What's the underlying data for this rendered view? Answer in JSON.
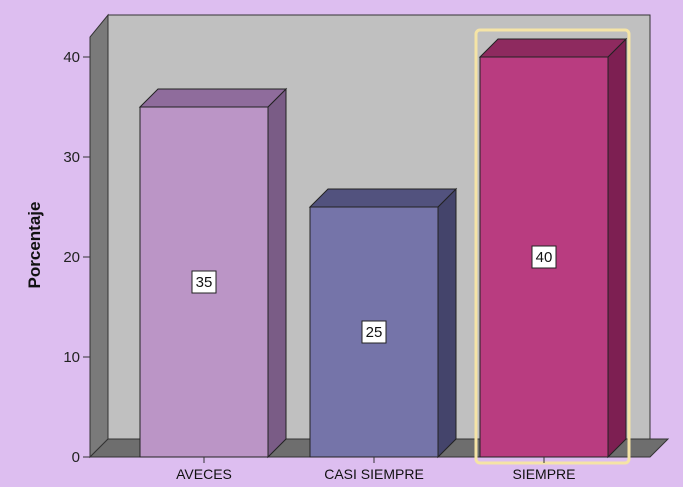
{
  "chart_data": {
    "type": "bar",
    "categories": [
      "AVECES",
      "CASI SIEMPRE",
      "SIEMPRE"
    ],
    "values": [
      35,
      25,
      40
    ],
    "data_labels": [
      "35",
      "25",
      "40"
    ],
    "ylabel": "Porcentaje",
    "xlabel": "",
    "ylim": [
      0,
      42
    ],
    "yticks": [
      "0",
      "10",
      "20",
      "30",
      "40"
    ],
    "grid": false,
    "legend": "none",
    "style": "3d",
    "highlighted_category": "SIEMPRE",
    "colors": {
      "background": "#ddbef0",
      "wall": "#c0c0c0",
      "wall_side": "#7a7a7a",
      "floor": "#6e6e6e",
      "highlight_outline": "#f5e4a6",
      "bars": [
        "#bb95c6",
        "#7574a9",
        "#b93c80"
      ],
      "bar_sides": [
        "#7a5c86",
        "#44446b",
        "#7d1f52"
      ],
      "bar_tops": [
        "#8f6c9c",
        "#52527e",
        "#8e2a5f"
      ]
    }
  }
}
